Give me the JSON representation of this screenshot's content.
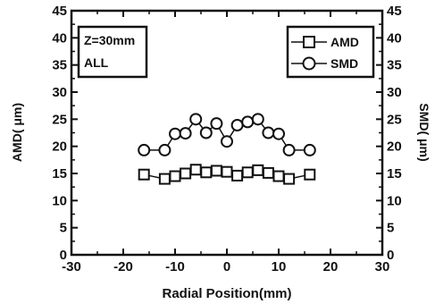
{
  "chart_data": {
    "type": "scatter",
    "xlabel": "Radial Position(mm)",
    "ylabel_left": "AMD( μm)",
    "ylabel_right": "SMD( μm)",
    "xlim": [
      -30,
      30
    ],
    "ylim": [
      0,
      45
    ],
    "x_ticks": [
      -30,
      -20,
      -10,
      0,
      10,
      20,
      30
    ],
    "y_ticks": [
      0,
      5,
      10,
      15,
      20,
      25,
      30,
      35,
      40,
      45
    ],
    "x_tick_labels": [
      "-30",
      "-20",
      "-10",
      "0",
      "10",
      "20",
      "30"
    ],
    "y_tick_labels": [
      "0",
      "5",
      "10",
      "15",
      "20",
      "25",
      "30",
      "35",
      "40",
      "45"
    ],
    "annotations": [
      "Z=30mm",
      "ALL"
    ],
    "legend_position": "top-right",
    "series": [
      {
        "name": "AMD",
        "marker": "square",
        "x": [
          -16,
          -12,
          -10,
          -8,
          -6,
          -4,
          -2,
          0,
          2,
          4,
          6,
          8,
          10,
          12,
          16
        ],
        "y": [
          14.8,
          14.0,
          14.5,
          15.0,
          15.7,
          15.2,
          15.5,
          15.3,
          14.6,
          15.2,
          15.6,
          15.1,
          14.5,
          14.0,
          14.8
        ]
      },
      {
        "name": "SMD",
        "marker": "circle",
        "x": [
          -16,
          -12,
          -10,
          -8,
          -6,
          -4,
          -2,
          0,
          2,
          4,
          6,
          8,
          10,
          12,
          16
        ],
        "y": [
          19.3,
          19.3,
          22.3,
          22.4,
          25.0,
          22.5,
          24.2,
          20.9,
          23.9,
          24.5,
          25.0,
          22.5,
          22.3,
          19.3,
          19.3
        ]
      }
    ]
  }
}
